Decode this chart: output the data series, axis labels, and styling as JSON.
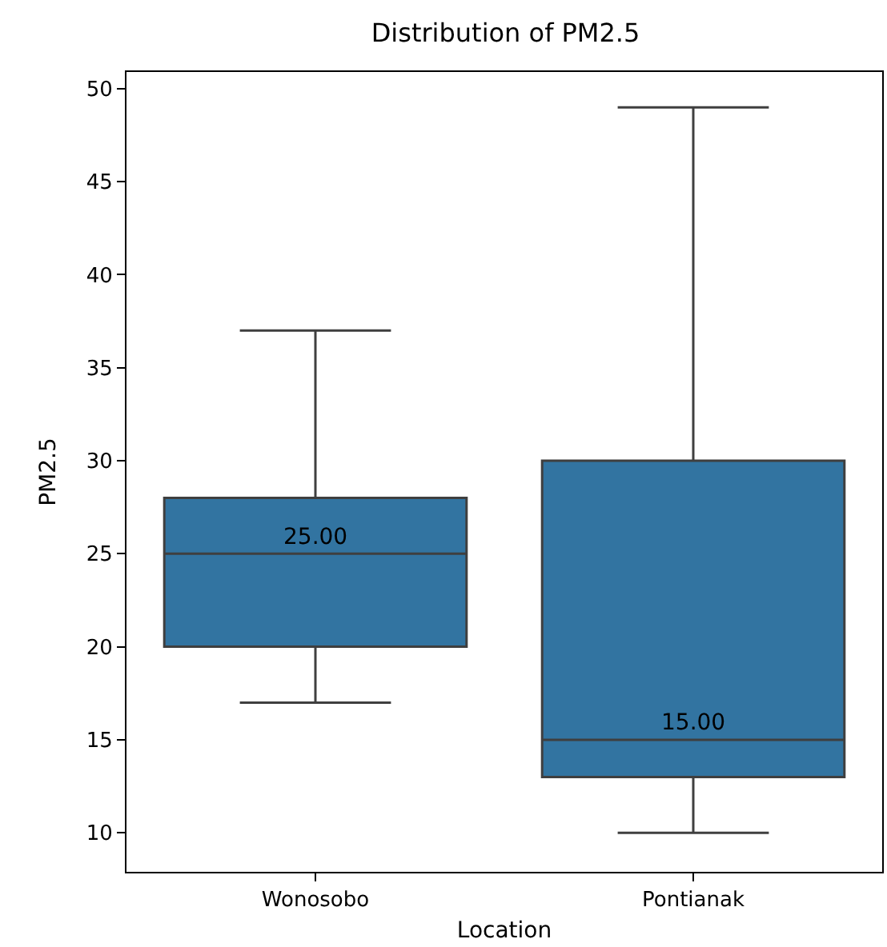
{
  "chart_data": {
    "type": "box",
    "title": "Distribution of PM2.5",
    "xlabel": "Location",
    "ylabel": "PM2.5",
    "categories": [
      "Wonosobo",
      "Pontianak"
    ],
    "boxes": [
      {
        "low": 17,
        "q1": 20,
        "median": 25,
        "q3": 28,
        "high": 37
      },
      {
        "low": 10,
        "q1": 13,
        "median": 15,
        "q3": 30,
        "high": 49
      }
    ],
    "value_labels": [
      "25.00",
      "15.00"
    ],
    "color": "#3274a1",
    "ylim": [
      7.9,
      50.9
    ],
    "yticks": [
      10,
      15,
      20,
      25,
      30,
      35,
      40,
      45,
      50
    ]
  }
}
